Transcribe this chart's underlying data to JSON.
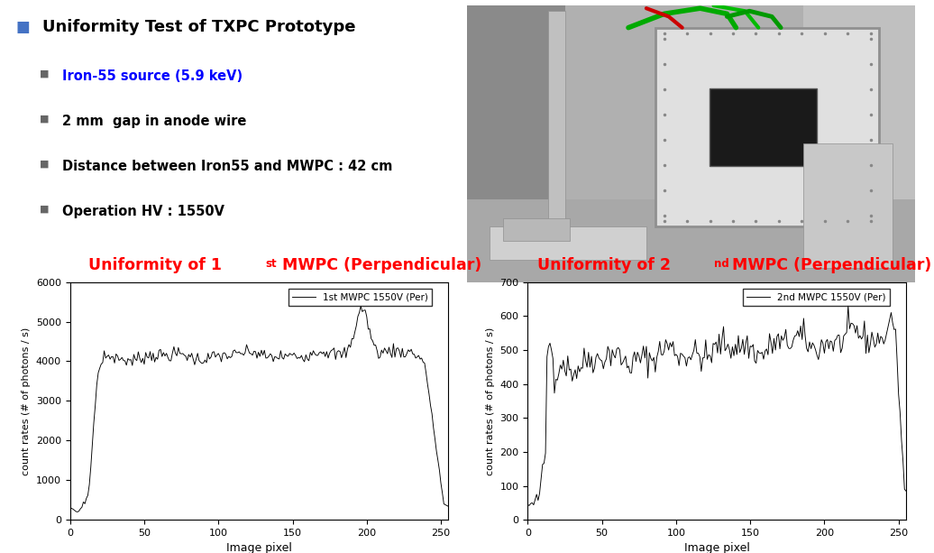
{
  "title_main": "Uniformity Test of TXPC Prototype",
  "bullet1": "Iron-55 source (5.9 keV)",
  "bullet2": "2 mm  gap in anode wire",
  "bullet3": "Distance between Iron55 and MWPC : 42 cm",
  "bullet4": "Operation HV : 1550V",
  "title_left_a": "Uniformity of 1",
  "title_left_sup": "st",
  "title_left_b": " MWPC (Perpendicular)",
  "title_right_a": "Uniformity of 2",
  "title_right_sup": "nd",
  "title_right_b": " MWPC (Perpendicular)",
  "legend_left": "1st MWPC 1550V (Per)",
  "legend_right": "2nd MWPC 1550V (Per)",
  "xlabel": "Image pixel",
  "ylabel": "count rates (# of photons / s)",
  "xlim": [
    0,
    255
  ],
  "ylim1": [
    0,
    6000
  ],
  "ylim2": [
    0,
    700
  ],
  "yticks1": [
    0,
    1000,
    2000,
    3000,
    4000,
    5000,
    6000
  ],
  "yticks2": [
    0,
    100,
    200,
    300,
    400,
    500,
    600,
    700
  ],
  "xticks": [
    0,
    50,
    100,
    150,
    200,
    250
  ],
  "title_color": "#FF0000",
  "blue_color": "#0000FF",
  "black_color": "#000000",
  "bg_color": "#FFFFFF",
  "main_bullet_color": "#4472C4",
  "sub_bullet_color": "#666666"
}
